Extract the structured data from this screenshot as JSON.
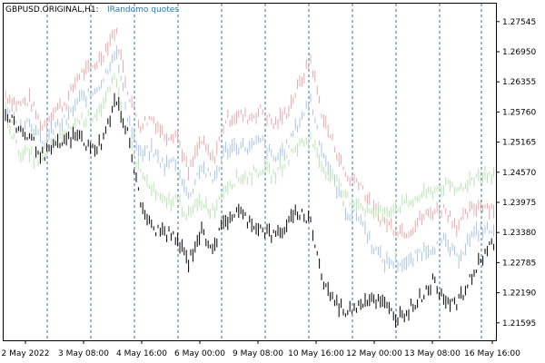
{
  "chart_data": {
    "type": "bar",
    "chart_style": "ohlc-bars",
    "legend": {
      "symbol_label": "GBPUSD.ORIGINAL,H1:",
      "overlay_label": "IRandomo quotes",
      "placement": "top-left"
    },
    "y_axis": {
      "position": "right",
      "range": [
        1.2125,
        1.279
      ],
      "ticks": [
        "1.27545",
        "1.26950",
        "1.26355",
        "1.25760",
        "1.25165",
        "1.24570",
        "1.23975",
        "1.23380",
        "1.22785",
        "1.22190",
        "1.21595"
      ]
    },
    "x_axis": {
      "ticks": [
        "2 May 2022",
        "3 May 08:00",
        "4 May 16:00",
        "6 May 00:00",
        "9 May 08:00",
        "10 May 16:00",
        "12 May 00:00",
        "13 May 08:00",
        "16 May 16:00"
      ]
    },
    "grid": {
      "vertical_dashed": true,
      "horizontal": false
    },
    "series": [
      {
        "color": "#e8a8a8",
        "values": [
          1.261,
          1.259,
          1.26,
          1.2545,
          1.258,
          1.2595,
          1.265,
          1.266,
          1.269,
          1.274,
          1.262,
          1.255,
          1.2565,
          1.253,
          1.2535,
          1.2455,
          1.252,
          1.248,
          1.256,
          1.257,
          1.2565,
          1.258,
          1.255,
          1.2575,
          1.2625,
          1.268,
          1.2565,
          1.2505,
          1.2445,
          1.244,
          1.2385,
          1.236,
          1.2345,
          1.234,
          1.2365,
          1.238,
          1.2385,
          1.235,
          1.238,
          1.2395,
          1.2385
        ]
      },
      {
        "color": "#a8c4e4",
        "values": [
          1.258,
          1.255,
          1.256,
          1.251,
          1.2545,
          1.256,
          1.26,
          1.261,
          1.264,
          1.27,
          1.257,
          1.249,
          1.25,
          1.247,
          1.248,
          1.2405,
          1.247,
          1.244,
          1.25,
          1.251,
          1.2505,
          1.252,
          1.248,
          1.2505,
          1.2555,
          1.26,
          1.2495,
          1.2435,
          1.2375,
          1.237,
          1.2315,
          1.228,
          1.228,
          1.2275,
          1.23,
          1.231,
          1.232,
          1.2285,
          1.2325,
          1.2345,
          1.234
        ]
      },
      {
        "color": "#b8e4b0",
        "values": [
          1.2575,
          1.25,
          1.249,
          1.248,
          1.2515,
          1.2535,
          1.256,
          1.2565,
          1.259,
          1.264,
          1.253,
          1.246,
          1.242,
          1.2395,
          1.2405,
          1.237,
          1.24,
          1.238,
          1.243,
          1.2445,
          1.245,
          1.2465,
          1.245,
          1.248,
          1.251,
          1.2525,
          1.2465,
          1.244,
          1.2405,
          1.2395,
          1.2375,
          1.238,
          1.239,
          1.2395,
          1.241,
          1.242,
          1.243,
          1.242,
          1.244,
          1.2455,
          1.245
        ]
      },
      {
        "color": "#000000",
        "values": [
          1.257,
          1.2545,
          1.2525,
          1.249,
          1.2505,
          1.252,
          1.253,
          1.25,
          1.252,
          1.26,
          1.254,
          1.24,
          1.2345,
          1.234,
          1.2325,
          1.228,
          1.234,
          1.231,
          1.236,
          1.238,
          1.236,
          1.2345,
          1.233,
          1.235,
          1.238,
          1.236,
          1.224,
          1.22,
          1.218,
          1.22,
          1.221,
          1.2195,
          1.217,
          1.2185,
          1.221,
          1.224,
          1.221,
          1.2195,
          1.224,
          1.229,
          1.232
        ]
      }
    ]
  }
}
